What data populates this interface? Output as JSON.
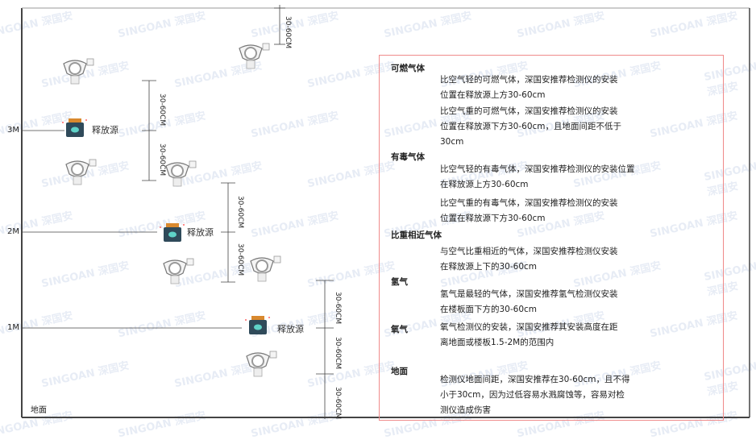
{
  "left": {
    "levels": [
      "3M",
      "2M",
      "1M"
    ],
    "ground": "地面",
    "source_label": "释放源",
    "dimension_label": "30-60CM"
  },
  "panel": {
    "sections": [
      {
        "title": "可燃气体",
        "paras": [
          "比空气轻的可燃气体，深国安推荐检测仪的安装\n位置在释放源上方30-60cm",
          "比空气重的可燃气体，深国安推荐检测仪的安装\n位置在释放源下方30-60cm，且地面间距不低于\n30cm"
        ]
      },
      {
        "title": "有毒气体",
        "paras": [
          "比空气轻的有毒气体，深国安推荐检测仪的安装位置\n在释放源上方30-60cm",
          "比空气重的有毒气体，深国安推荐检测仪的安装\n位置在释放源下方30-60cm"
        ]
      },
      {
        "title": "比重相近气体",
        "paras": [
          "与空气比重相近的气体，深国安推荐检测仪安装\n在释放源上下的30-60cm"
        ]
      },
      {
        "title": "氢气",
        "paras": [
          "氢气是最轻的气体，深国安推荐氢气检测仪安装\n在楼板面下方的30-60cm"
        ]
      },
      {
        "title": "氧气",
        "paras": [
          "氧气检测仪的安装，深国安推荐其安装高度在距\n离地面或楼板1.5-2M的范围内"
        ]
      },
      {
        "title": "地面",
        "paras": [
          "检测仪地面间距，深国安推荐在30-60cm，且不得\n小于30cm，因为过低容易水溅腐蚀等，容易对检\n测仪造成伤害"
        ]
      }
    ]
  },
  "watermark": "SINGOAN 深国安",
  "colors": {
    "frame": "#222222",
    "panel_border": "#f08a8a",
    "source_body": "#2f4a5a",
    "source_cap": "#d9892e"
  }
}
